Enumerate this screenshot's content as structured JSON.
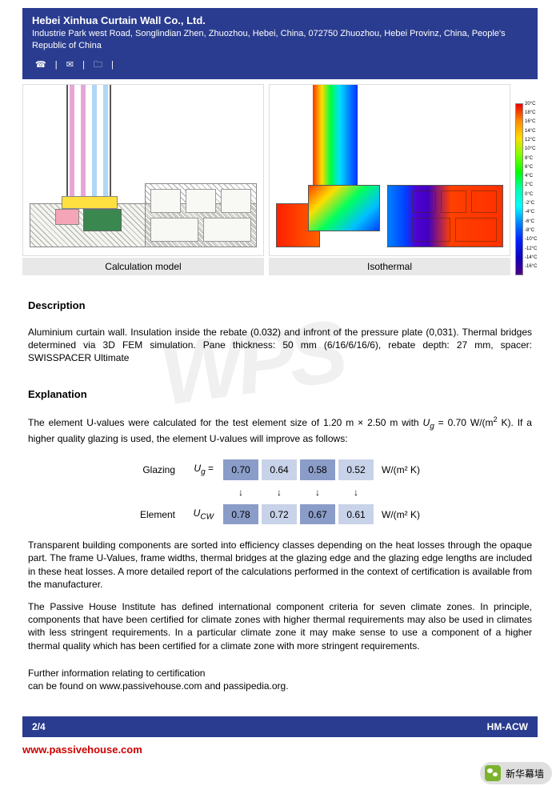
{
  "header": {
    "company": "Hebei Xinhua Curtain Wall Co., Ltd.",
    "address": "Industrie Park west Road, Songlindian Zhen, Zhuozhou, Hebei, China, 072750 Zhuozhou, Hebei Provinz, China, People's Republic of China",
    "icons": {
      "phone": "☎",
      "sep": "|",
      "mail": "✉",
      "cart": "🗀"
    }
  },
  "figures": {
    "calc_caption": "Calculation model",
    "iso_caption": "Isothermal",
    "legend_ticks": [
      "20°C",
      "18°C",
      "16°C",
      "14°C",
      "12°C",
      "10°C",
      "8°C",
      "6°C",
      "4°C",
      "2°C",
      "0°C",
      "-2°C",
      "-4°C",
      "-6°C",
      "-8°C",
      "-10°C",
      "-12°C",
      "-14°C",
      "-16°C"
    ]
  },
  "description": {
    "title": "Description",
    "text": "Aluminium curtain wall. Insulation inside the rebate (0.032) and infront of the pressure plate (0,031). Thermal bridges determined via 3D FEM simulation. Pane thickness: 50 mm (6/16/6/16/6), rebate depth: 27 mm, spacer: SWISSPACER Ultimate"
  },
  "explanation": {
    "title": "Explanation",
    "intro_a": "The element U-values were calculated for the test element size of 1.20 m × 2.50 m with ",
    "intro_ug": "U",
    "intro_ug_sub": "g",
    "intro_eq": " = 0.70 W/(m",
    "intro_sup": "2",
    "intro_end": " K). If a higher quality glazing is used, the element U-values will improve as follows:",
    "table": {
      "row1_lbl": "Glazing",
      "row1_sym": "U",
      "row1_sub": "g",
      "row1_eq": "=",
      "vals1": [
        "0.70",
        "0.64",
        "0.58",
        "0.52"
      ],
      "unit1": "W/(m² K)",
      "arrow": "↓",
      "row2_lbl": "Element",
      "row2_sym": "U",
      "row2_sub": "CW",
      "vals2": [
        "0.78",
        "0.72",
        "0.67",
        "0.61"
      ],
      "unit2": "W/(m² K)"
    },
    "para2": "Transparent building components are sorted into efficiency classes depending on the heat losses through the opaque part. The frame U-Values, frame widths, thermal bridges at the glazing edge and the glazing edge lengths are included in these heat losses. A more detailed report of the calculations performed in the context of certification is available from the manufacturer.",
    "para3": "The Passive House Institute has defined international component criteria for seven climate zones. In principle, components that have been certified for climate zones with higher thermal requirements may also be used in climates with less stringent requirements. In a particular climate zone it may make sense to use a component of a higher thermal quality which has been certified for a climate zone with more stringent requirements.",
    "para4a": "Further information relating to certification",
    "para4b": "can be found on www.passivehouse.com and passipedia.org."
  },
  "footer": {
    "page": "2/4",
    "code": "HM-ACW"
  },
  "url": "www.passivehouse.com",
  "watermark": "WPS",
  "wechat": "新华幕墙"
}
